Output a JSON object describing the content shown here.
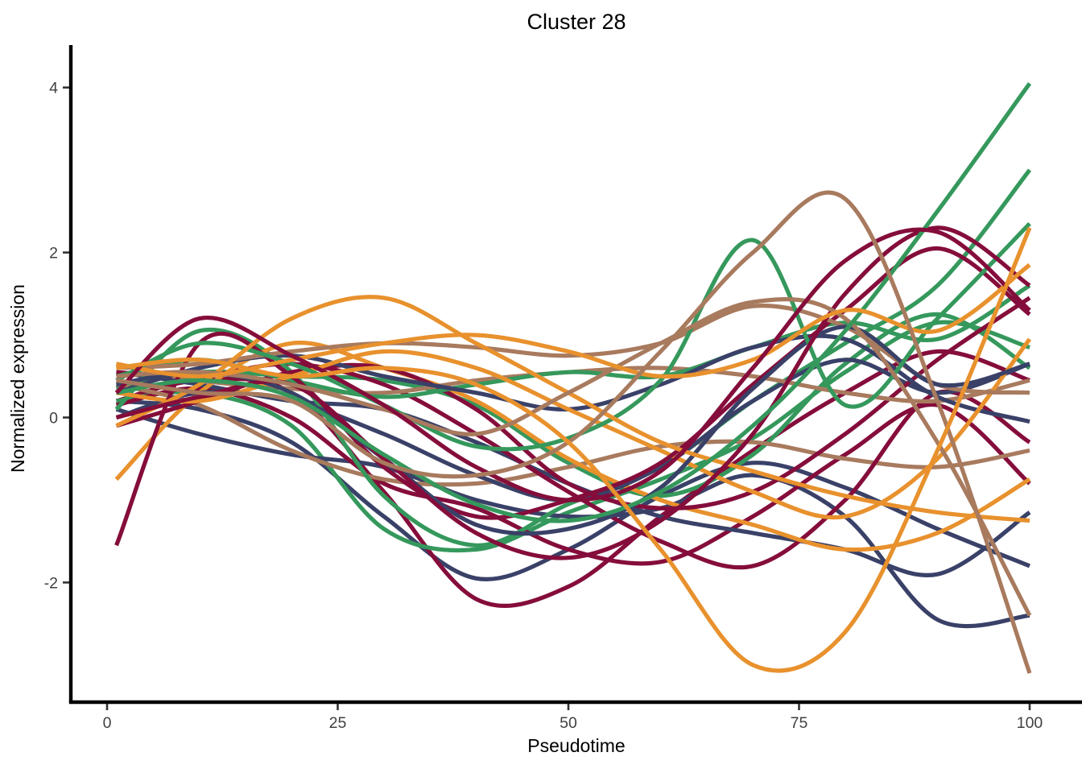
{
  "chart_data": {
    "type": "line",
    "title": "Cluster 28",
    "xlabel": "Pseudotime",
    "ylabel": "Normalized expression",
    "xlim": [
      0,
      100
    ],
    "ylim": [
      -3.4,
      4.5
    ],
    "x_ticks": [
      0,
      25,
      50,
      75,
      100
    ],
    "y_ticks": [
      -2,
      0,
      2,
      4
    ],
    "grid": false,
    "legend": "none",
    "theme": "classic",
    "axis_color": "#000000",
    "tick_label_color": "#404040",
    "palette": {
      "green": "#35985C",
      "maroon": "#850D3B",
      "navy": "#3A4168",
      "orange": "#E8912D",
      "brown": "#A87A5E"
    },
    "x": [
      1,
      10,
      20,
      30,
      40,
      50,
      60,
      70,
      80,
      90,
      100
    ],
    "series": [
      {
        "name": "series_01",
        "color": "navy",
        "values": [
          0.2,
          0.1,
          -0.3,
          -1.2,
          -1.95,
          -1.6,
          -0.95,
          -0.55,
          -0.85,
          -1.35,
          -1.8
        ]
      },
      {
        "name": "series_02",
        "color": "maroon",
        "values": [
          0.2,
          0.45,
          0.3,
          -0.9,
          -2.2,
          -2.05,
          -1.2,
          -0.4,
          0.3,
          0.8,
          0.45
        ]
      },
      {
        "name": "series_03",
        "color": "green",
        "values": [
          0.2,
          0.3,
          -0.1,
          -1.35,
          -1.6,
          -1.15,
          -0.75,
          -0.25,
          0.55,
          1.15,
          0.85
        ]
      },
      {
        "name": "series_04",
        "color": "navy",
        "values": [
          0.1,
          -0.2,
          -0.45,
          -0.6,
          -1.0,
          -1.2,
          -1.1,
          -0.7,
          -1.2,
          -2.45,
          -2.4
        ]
      },
      {
        "name": "series_05",
        "color": "maroon",
        "values": [
          0.15,
          0.35,
          0.0,
          -0.8,
          -1.1,
          -1.6,
          -1.75,
          -1.2,
          -0.45,
          0.15,
          -0.8
        ]
      },
      {
        "name": "series_06",
        "color": "green",
        "values": [
          0.35,
          0.55,
          0.5,
          0.45,
          0.15,
          -0.55,
          -0.95,
          -0.45,
          0.65,
          1.25,
          0.6
        ]
      },
      {
        "name": "series_07",
        "color": "brown",
        "values": [
          0.4,
          0.15,
          -0.4,
          -0.75,
          -0.8,
          -0.6,
          -0.35,
          -0.3,
          -0.5,
          -0.6,
          -0.4
        ]
      },
      {
        "name": "series_08",
        "color": "navy",
        "values": [
          0.55,
          0.4,
          0.2,
          0.1,
          -0.3,
          -0.8,
          -1.2,
          -1.4,
          -1.6,
          -1.9,
          -1.15
        ]
      },
      {
        "name": "series_09",
        "color": "maroon",
        "values": [
          0.55,
          0.5,
          0.65,
          0.4,
          -0.2,
          -0.9,
          -1.5,
          -1.8,
          -1.0,
          0.3,
          -0.3
        ]
      },
      {
        "name": "series_10",
        "color": "green",
        "values": [
          0.1,
          1.05,
          0.55,
          -0.95,
          -1.55,
          -1.05,
          -0.6,
          0.2,
          0.9,
          1.6,
          3.0
        ]
      },
      {
        "name": "series_11",
        "color": "orange",
        "values": [
          -0.75,
          0.3,
          0.9,
          0.6,
          0.2,
          -0.5,
          -1.0,
          -1.3,
          -1.6,
          -1.4,
          -0.75
        ]
      },
      {
        "name": "series_12",
        "color": "navy",
        "values": [
          0.0,
          0.3,
          0.2,
          -0.2,
          -0.7,
          -1.0,
          -0.6,
          0.2,
          0.7,
          0.3,
          0.65
        ]
      },
      {
        "name": "series_13",
        "color": "maroon",
        "values": [
          -0.1,
          0.2,
          0.55,
          0.6,
          0.1,
          -0.8,
          -1.1,
          -0.9,
          -0.2,
          0.7,
          1.45
        ]
      },
      {
        "name": "series_14",
        "color": "brown",
        "values": [
          0.65,
          0.45,
          0.35,
          0.3,
          0.45,
          0.55,
          0.6,
          0.5,
          0.3,
          0.2,
          0.45
        ]
      },
      {
        "name": "series_15",
        "color": "green",
        "values": [
          0.5,
          0.7,
          0.45,
          0.25,
          0.4,
          0.55,
          0.5,
          0.85,
          1.15,
          0.95,
          1.6
        ]
      },
      {
        "name": "series_16",
        "color": "navy",
        "values": [
          0.3,
          0.6,
          0.75,
          0.5,
          0.3,
          0.1,
          0.4,
          0.85,
          0.95,
          0.25,
          -0.05
        ]
      },
      {
        "name": "series_17",
        "color": "orange",
        "values": [
          0.3,
          0.2,
          0.5,
          0.8,
          0.6,
          0.1,
          -0.4,
          -0.9,
          -1.2,
          -0.5,
          0.95
        ]
      },
      {
        "name": "series_18",
        "color": "maroon",
        "values": [
          -1.55,
          0.9,
          0.5,
          -0.6,
          -1.2,
          -1.0,
          -0.55,
          0.4,
          1.3,
          2.05,
          1.25
        ]
      },
      {
        "name": "series_19",
        "color": "brown",
        "values": [
          0.6,
          0.65,
          0.8,
          0.9,
          0.85,
          0.75,
          0.9,
          1.35,
          1.1,
          0.4,
          0.3
        ]
      },
      {
        "name": "series_20",
        "color": "navy",
        "values": [
          0.4,
          0.55,
          0.3,
          -0.5,
          -1.3,
          -1.35,
          -0.85,
          0.35,
          1.1,
          0.4,
          0.65
        ]
      },
      {
        "name": "series_21",
        "color": "green",
        "values": [
          0.45,
          0.9,
          0.65,
          0.15,
          -0.35,
          -0.25,
          0.45,
          2.15,
          0.15,
          1.2,
          2.35
        ]
      },
      {
        "name": "series_22",
        "color": "orange",
        "values": [
          -0.1,
          0.4,
          1.2,
          1.45,
          0.9,
          0.3,
          -0.3,
          -0.65,
          -0.95,
          -1.15,
          -1.25
        ]
      },
      {
        "name": "series_23",
        "color": "maroon",
        "values": [
          0.0,
          0.25,
          0.4,
          -0.5,
          -1.4,
          -1.7,
          -1.25,
          -0.2,
          1.5,
          2.3,
          1.6
        ]
      },
      {
        "name": "series_24",
        "color": "brown",
        "values": [
          0.5,
          0.55,
          0.4,
          0.1,
          -0.2,
          0.3,
          0.9,
          1.4,
          1.2,
          -0.3,
          -2.4
        ]
      },
      {
        "name": "series_25",
        "color": "green",
        "values": [
          0.3,
          0.45,
          0.25,
          -0.45,
          -1.05,
          -1.25,
          -0.9,
          -0.1,
          1.05,
          2.5,
          4.05
        ]
      },
      {
        "name": "series_26",
        "color": "orange",
        "values": [
          0.65,
          0.5,
          0.7,
          0.9,
          1.0,
          0.8,
          0.5,
          0.7,
          1.3,
          1.05,
          1.85
        ]
      },
      {
        "name": "series_27",
        "color": "maroon",
        "values": [
          0.3,
          1.2,
          0.75,
          0.15,
          -0.6,
          -1.0,
          -0.65,
          0.6,
          1.9,
          2.25,
          1.3
        ]
      },
      {
        "name": "series_28",
        "color": "brown",
        "values": [
          0.45,
          0.3,
          0.2,
          -0.55,
          -0.7,
          -0.3,
          0.8,
          2.0,
          2.65,
          0.2,
          -3.1
        ]
      },
      {
        "name": "series_29",
        "color": "orange",
        "values": [
          0.6,
          0.7,
          0.5,
          0.6,
          0.4,
          -0.3,
          -1.6,
          -3.0,
          -2.6,
          -0.4,
          2.3
        ]
      }
    ]
  }
}
